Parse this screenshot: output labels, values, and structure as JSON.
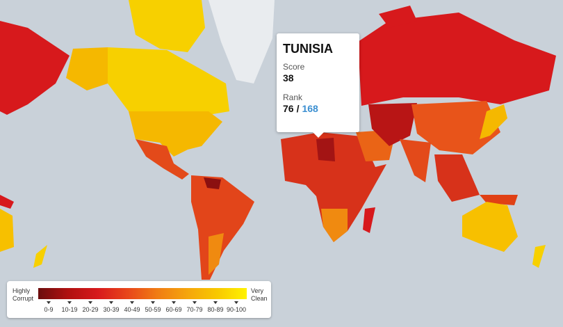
{
  "tooltip": {
    "country": "TUNISIA",
    "score_label": "Score",
    "score": 38,
    "rank_label": "Rank",
    "rank": 76,
    "separator": "/",
    "total": 168
  },
  "legend": {
    "low_label": "Highly Corrupt",
    "high_label": "Very Clean",
    "bins": [
      "0-9",
      "10-19",
      "20-29",
      "30-39",
      "40-49",
      "50-59",
      "60-69",
      "70-79",
      "80-89",
      "90-100"
    ]
  }
}
